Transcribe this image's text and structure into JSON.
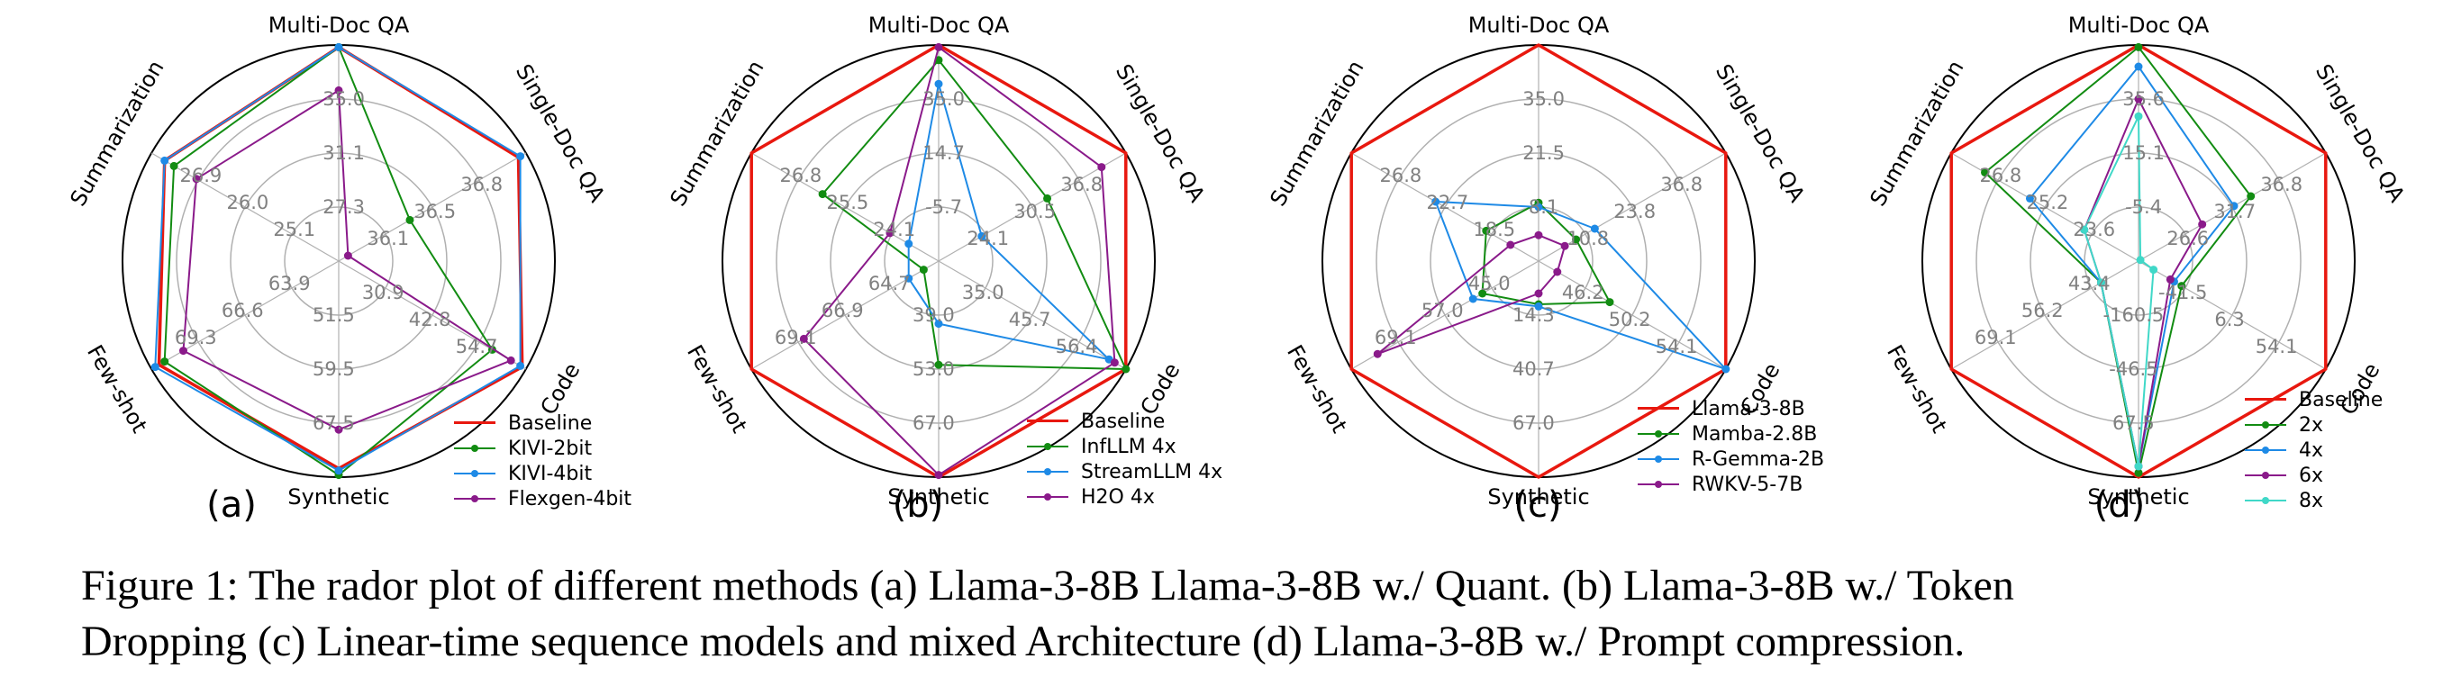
{
  "axes": [
    "Multi-Doc QA",
    "Single-Doc QA",
    "Code",
    "Synthetic",
    "Few-shot",
    "Summarization"
  ],
  "caption": {
    "line1": "Figure 1: The rador plot of different methods (a) Llama-3-8B Llama-3-8B w./ Quant. (b) Llama-3-8B w./ Token",
    "line2": "Dropping (c) Linear-time sequence models and mixed Architecture (d) Llama-3-8B w./ Prompt compression."
  },
  "colors": {
    "Baseline": "#e8180f",
    "green": "#128c12",
    "blue": "#1e8ae6",
    "purple": "#8a1a8a",
    "cyan": "#40d8c8",
    "grid": "#b0b0b0",
    "outer": "#000000",
    "tick": "#808080"
  },
  "chart_data": [
    {
      "type": "radar",
      "panel_label": "(a)",
      "axes": [
        "Multi-Doc QA",
        "Single-Doc QA",
        "Code",
        "Synthetic",
        "Few-shot",
        "Summarization"
      ],
      "ring_fractions": [
        0.25,
        0.5,
        0.75
      ],
      "tick_labels": [
        [
          "27.3",
          "31.1",
          "35.0"
        ],
        [
          "36.1",
          "36.5",
          "36.8"
        ],
        [
          "30.9",
          "42.8",
          "54.7"
        ],
        [
          "51.5",
          "59.5",
          "67.5"
        ],
        [
          "63.9",
          "66.6",
          "69.3"
        ],
        [
          "25.1",
          "26.0",
          "26.9"
        ]
      ],
      "series": [
        {
          "name": "Baseline",
          "color": "#e8180f",
          "marker": false,
          "width": 3.5,
          "values": [
            0.99,
            0.96,
            0.98,
            0.96,
            0.96,
            0.93
          ]
        },
        {
          "name": "KIVI-2bit",
          "color": "#128c12",
          "marker": true,
          "width": 2,
          "values": [
            0.99,
            0.38,
            0.82,
            0.99,
            0.93,
            0.88
          ]
        },
        {
          "name": "KIVI-4bit",
          "color": "#1e8ae6",
          "marker": true,
          "width": 2,
          "values": [
            0.99,
            0.97,
            0.97,
            0.97,
            0.98,
            0.93
          ]
        },
        {
          "name": "Flexgen-4bit",
          "color": "#8a1a8a",
          "marker": true,
          "width": 2,
          "values": [
            0.79,
            0.05,
            0.92,
            0.78,
            0.83,
            0.76
          ]
        }
      ]
    },
    {
      "type": "radar",
      "panel_label": "(b)",
      "axes": [
        "Multi-Doc QA",
        "Single-Doc QA",
        "Code",
        "Synthetic",
        "Few-shot",
        "Summarization"
      ],
      "ring_fractions": [
        0.25,
        0.5,
        0.75
      ],
      "tick_labels": [
        [
          "-5.7",
          "14.7",
          "35.0"
        ],
        [
          "24.1",
          "30.5",
          "36.8"
        ],
        [
          "35.0",
          "45.7",
          "56.4"
        ],
        [
          "39.0",
          "53.0",
          "67.0"
        ],
        [
          "64.7",
          "66.9",
          "69.1"
        ],
        [
          "24.1",
          "25.5",
          "26.8"
        ]
      ],
      "series": [
        {
          "name": "Baseline",
          "color": "#e8180f",
          "marker": false,
          "width": 3.5,
          "values": [
            1.0,
            1.0,
            1.0,
            1.0,
            1.0,
            1.0
          ]
        },
        {
          "name": "InfLLM 4x",
          "color": "#128c12",
          "marker": true,
          "width": 2,
          "values": [
            0.93,
            0.58,
            1.0,
            0.48,
            0.08,
            0.62
          ]
        },
        {
          "name": "StreamLLM 4x",
          "color": "#1e8ae6",
          "marker": true,
          "width": 2,
          "values": [
            0.82,
            0.23,
            0.91,
            0.29,
            0.16,
            0.16
          ]
        },
        {
          "name": "H2O 4x",
          "color": "#8a1a8a",
          "marker": true,
          "width": 2,
          "values": [
            0.99,
            0.87,
            0.94,
            0.99,
            0.72,
            0.26
          ]
        }
      ]
    },
    {
      "type": "radar",
      "panel_label": "(c)",
      "axes": [
        "Multi-Doc QA",
        "Single-Doc QA",
        "Code",
        "Synthetic",
        "Few-shot",
        "Summarization"
      ],
      "ring_fractions": [
        0.25,
        0.5,
        0.75
      ],
      "tick_labels": [
        [
          "8.1",
          "21.5",
          "35.0"
        ],
        [
          "10.8",
          "23.8",
          "36.8"
        ],
        [
          "46.2",
          "50.2",
          "54.1"
        ],
        [
          "14.3",
          "40.7",
          "67.0"
        ],
        [
          "45.0",
          "57.0",
          "69.1"
        ],
        [
          "18.5",
          "22.7",
          "26.8"
        ]
      ],
      "series": [
        {
          "name": "Llama-3-8B",
          "color": "#e8180f",
          "marker": false,
          "width": 3.5,
          "values": [
            1.0,
            1.0,
            1.0,
            1.0,
            1.0,
            1.0
          ]
        },
        {
          "name": "Mamba-2.8B",
          "color": "#128c12",
          "marker": true,
          "width": 2,
          "values": [
            0.27,
            0.2,
            0.38,
            0.2,
            0.3,
            0.28
          ]
        },
        {
          "name": "R-Gemma-2B",
          "color": "#1e8ae6",
          "marker": true,
          "width": 2,
          "values": [
            0.25,
            0.3,
            1.0,
            0.21,
            0.35,
            0.55
          ]
        },
        {
          "name": "RWKV-5-7B",
          "color": "#8a1a8a",
          "marker": true,
          "width": 2,
          "values": [
            0.12,
            0.14,
            0.1,
            0.15,
            0.86,
            0.15
          ]
        }
      ]
    },
    {
      "type": "radar",
      "panel_label": "(d)",
      "axes": [
        "Multi-Doc QA",
        "Single-Doc QA",
        "Code",
        "Synthetic",
        "Few-shot",
        "Summarization"
      ],
      "ring_fractions": [
        0.25,
        0.5,
        0.75
      ],
      "tick_labels": [
        [
          "-5.4",
          "15.1",
          "35.6"
        ],
        [
          "26.6",
          "31.7",
          "36.8"
        ],
        [
          "-41.5",
          "6.3",
          "54.1"
        ],
        [
          "-160.5",
          "-46.5",
          "67.5"
        ],
        [
          "43.4",
          "56.2",
          "69.1"
        ],
        [
          "23.6",
          "25.2",
          "26.8"
        ]
      ],
      "series": [
        {
          "name": "Baseline",
          "color": "#e8180f",
          "marker": false,
          "width": 3.5,
          "values": [
            1.0,
            1.0,
            1.0,
            1.0,
            1.0,
            1.0
          ]
        },
        {
          "name": "2x",
          "color": "#128c12",
          "marker": true,
          "width": 2,
          "values": [
            0.99,
            0.6,
            0.23,
            0.98,
            0.2,
            0.82
          ]
        },
        {
          "name": "4x",
          "color": "#1e8ae6",
          "marker": true,
          "width": 2,
          "values": [
            0.9,
            0.51,
            0.19,
            0.95,
            0.2,
            0.58
          ]
        },
        {
          "name": "6x",
          "color": "#8a1a8a",
          "marker": true,
          "width": 2,
          "values": [
            0.75,
            0.34,
            0.17,
            0.95,
            0.2,
            0.29
          ]
        },
        {
          "name": "8x",
          "color": "#40d8c8",
          "marker": true,
          "width": 2,
          "values": [
            0.67,
            0.01,
            0.08,
            0.95,
            0.2,
            0.29
          ]
        }
      ]
    }
  ]
}
